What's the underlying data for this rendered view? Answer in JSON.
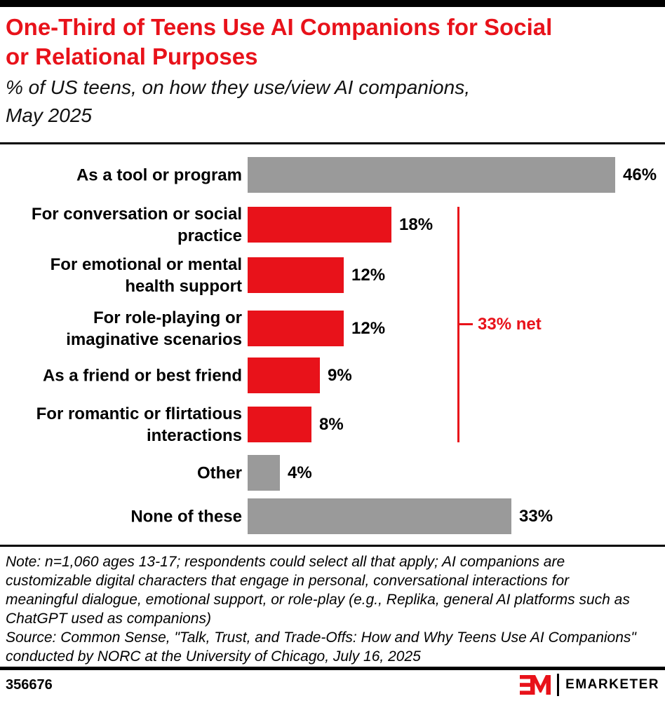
{
  "chart_data": {
    "type": "bar",
    "orientation": "horizontal",
    "title": "One-Third of Teens Use AI Companions for Social\nor Relational Purposes",
    "subtitle": "% of US teens, on how they use/view AI companions,\nMay 2025",
    "value_unit": "%",
    "xlim": [
      0,
      50
    ],
    "grid": false,
    "value_labels": true,
    "categories": [
      "As a tool or program",
      "For conversation or social practice",
      "For emotional or mental health support",
      "For role-playing or imaginative scenarios",
      "As a friend or best friend",
      "For romantic or flirtatious interactions",
      "Other",
      "None of these"
    ],
    "values": [
      46,
      18,
      12,
      12,
      9,
      8,
      4,
      33
    ],
    "rows": [
      {
        "label": "As a tool or program",
        "value": 46,
        "value_label": "46%",
        "color": "gray"
      },
      {
        "label": "For conversation or social\npractice",
        "value": 18,
        "value_label": "18%",
        "color": "red"
      },
      {
        "label": "For emotional or mental\nhealth support",
        "value": 12,
        "value_label": "12%",
        "color": "red"
      },
      {
        "label": "For role-playing or\nimaginative scenarios",
        "value": 12,
        "value_label": "12%",
        "color": "red"
      },
      {
        "label": "As a friend or best friend",
        "value": 9,
        "value_label": "9%",
        "color": "red"
      },
      {
        "label": "For romantic or flirtatious\ninteractions",
        "value": 8,
        "value_label": "8%",
        "color": "red"
      },
      {
        "label": "Other",
        "value": 4,
        "value_label": "4%",
        "color": "gray"
      },
      {
        "label": "None of these",
        "value": 33,
        "value_label": "33%",
        "color": "gray"
      }
    ],
    "net_annotation": {
      "text": "33% net",
      "value": 33,
      "applies_to": [
        "For conversation or social practice",
        "For emotional or mental health support",
        "For role-playing or imaginative scenarios",
        "As a friend or best friend",
        "For romantic or flirtatious interactions"
      ]
    },
    "colors": {
      "red": "#e8121a",
      "gray": "#9a9a9a",
      "title": "#e8121a"
    }
  },
  "note": "Note: n=1,060 ages 13-17; respondents could select all that apply; AI companions are customizable digital characters that engage in personal, conversational interactions for meaningful dialogue, emotional support, or role-play (e.g., Replika, general AI platforms such as ChatGPT used as companions)",
  "source": "Source: Common Sense, \"Talk, Trust, and Trade-Offs: How and Why Teens Use AI Companions\" conducted by NORC at the University of Chicago, July 16, 2025",
  "footer": {
    "chart_id": "356676",
    "brand": "EMARKETER",
    "monogram": "EM"
  }
}
